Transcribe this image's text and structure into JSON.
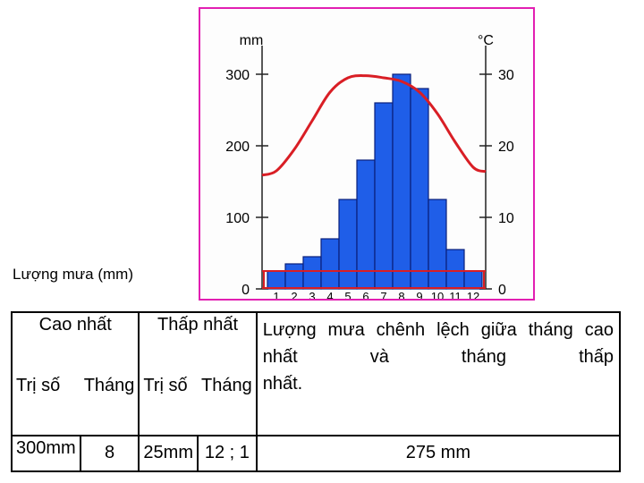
{
  "chart_data": {
    "type": "bar",
    "categories": [
      "1",
      "2",
      "3",
      "4",
      "5",
      "6",
      "7",
      "8",
      "9",
      "10",
      "11",
      "12"
    ],
    "series": [
      {
        "type": "bar",
        "axis": "left",
        "unit": "mm",
        "values": [
          25,
          35,
          45,
          70,
          125,
          180,
          260,
          300,
          280,
          125,
          55,
          25
        ]
      },
      {
        "type": "line",
        "axis": "right",
        "unit": "°C",
        "values": [
          16.5,
          19.5,
          23.5,
          27.5,
          29.5,
          29.8,
          29.5,
          29.0,
          27.5,
          24.5,
          20.5,
          17.0
        ]
      }
    ],
    "left_axis": {
      "unit": "mm",
      "ticks": [
        0,
        100,
        200,
        300
      ],
      "range": [
        0,
        340
      ]
    },
    "right_axis": {
      "unit": "°C",
      "ticks": [
        0,
        10,
        20,
        30
      ],
      "range": [
        0,
        34
      ]
    },
    "reference_lines": [
      25
    ],
    "colors": {
      "bars": "#1f5ee8",
      "bar_edge": "#0a1f7a",
      "line": "#d91e25",
      "frame": "#e21fb2"
    }
  },
  "labels": {
    "rain_label": "Lượng mưa (mm)"
  },
  "table": {
    "max_header": "Cao nhất",
    "min_header": "Thấp nhất",
    "diff_note": "Lượng mưa chênh lệch giữa tháng cao nhất và tháng thấp",
    "diff_note_last": "nhất.",
    "value_header": "Trị số",
    "month_header": "Tháng",
    "max_value": "300mm",
    "max_month": "8",
    "min_value": "25mm",
    "min_month": "12 ; 1",
    "diff_value": "275 mm"
  }
}
